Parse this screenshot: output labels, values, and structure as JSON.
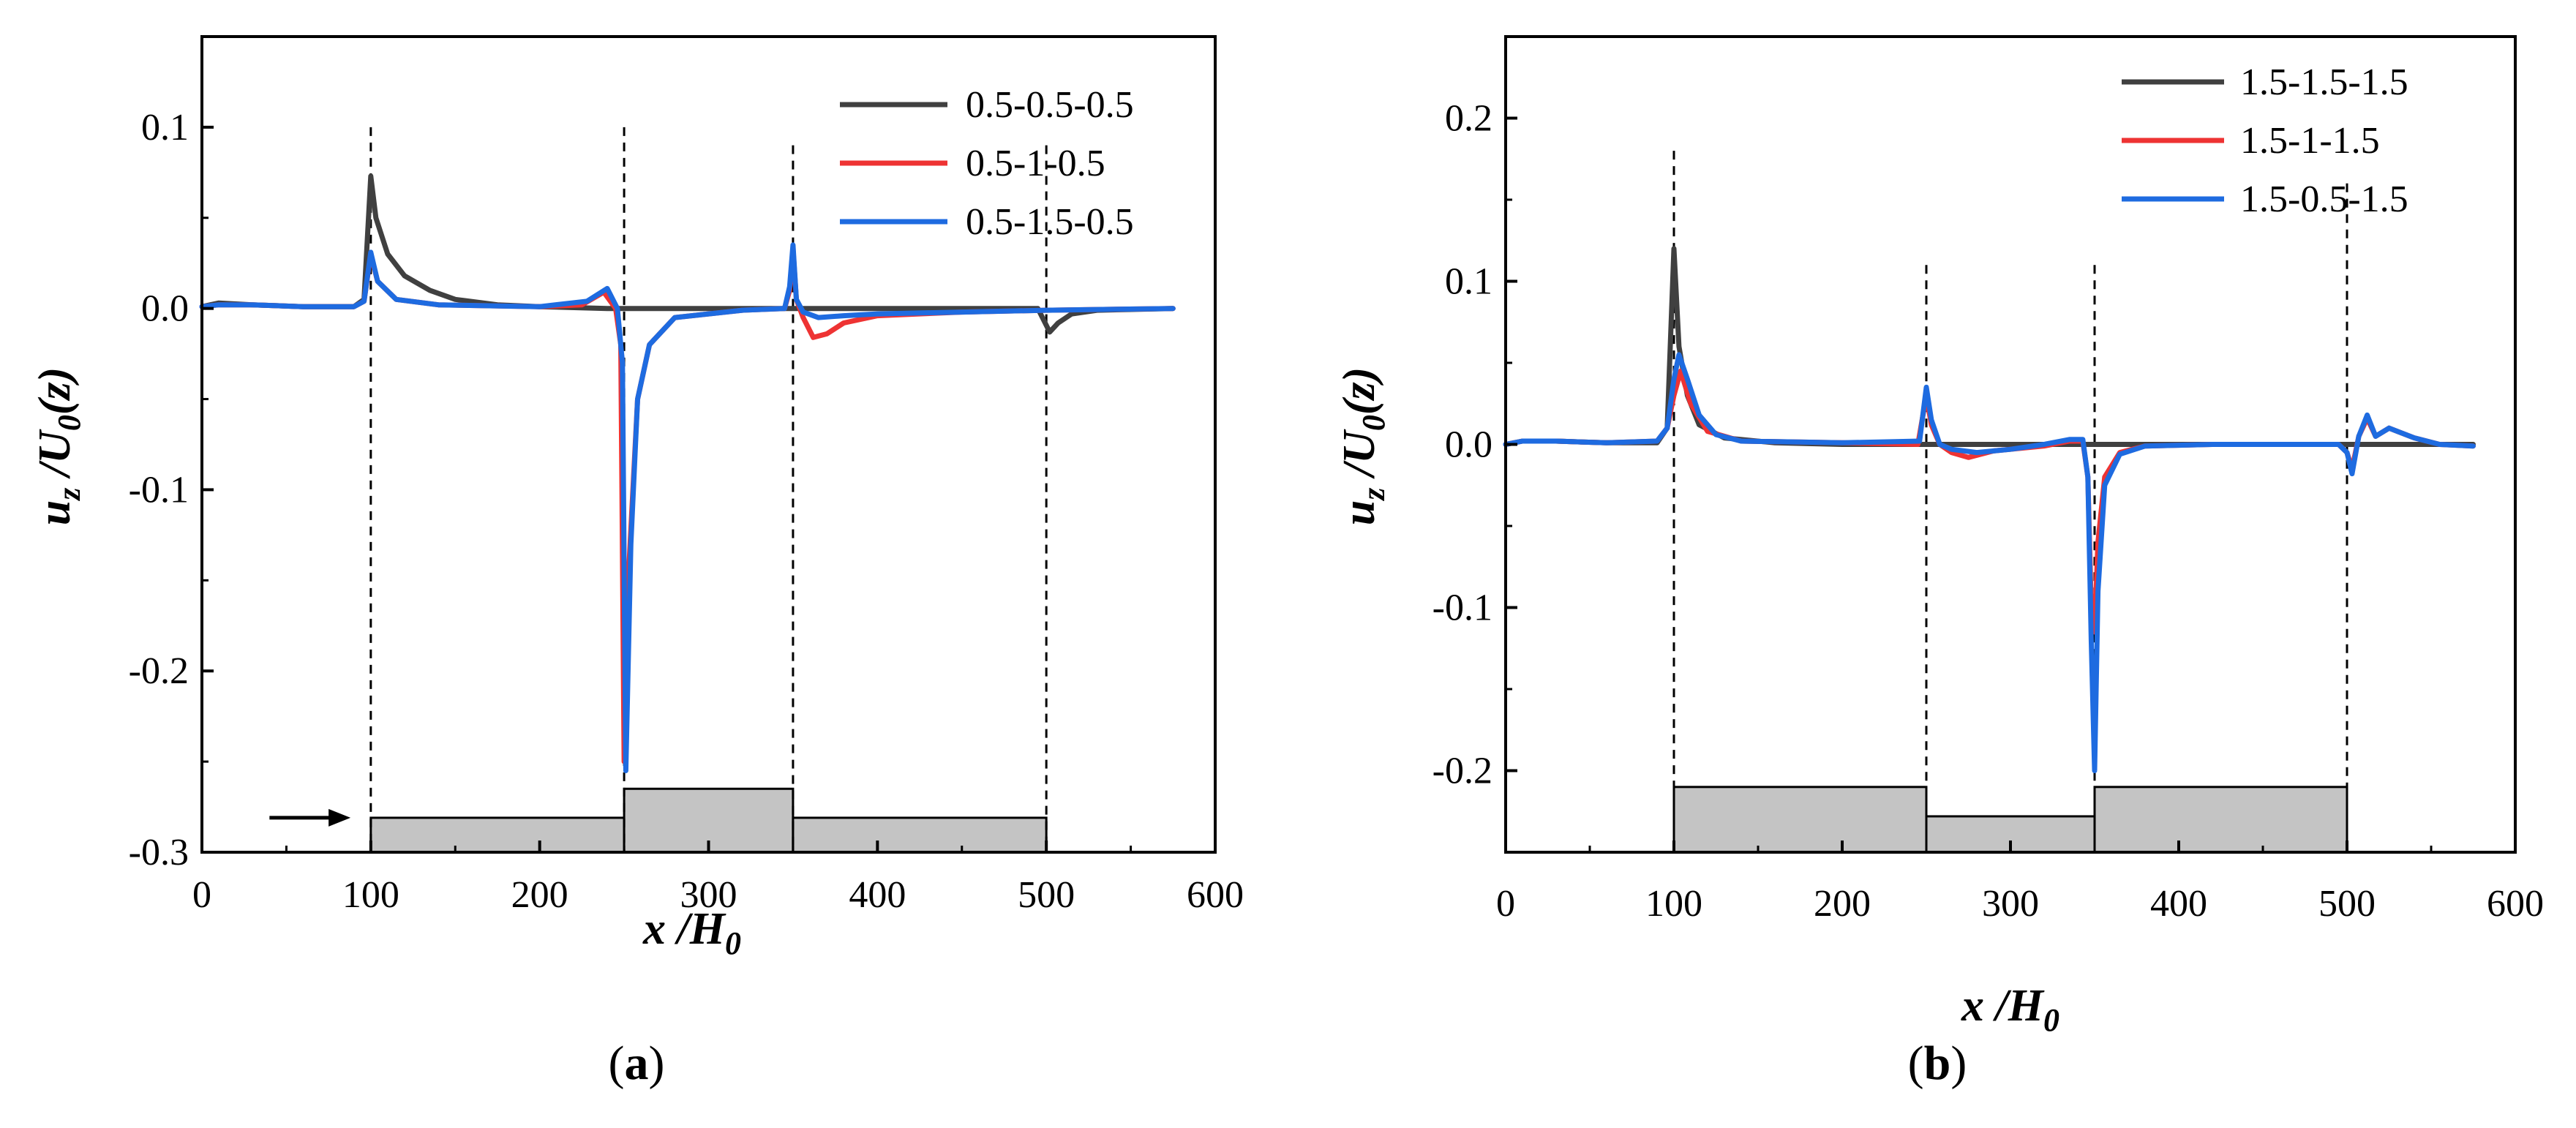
{
  "chart_data": [
    {
      "type": "line",
      "panel_label": "a",
      "xlabel": {
        "main": "x /H",
        "sub": "0"
      },
      "ylabel": {
        "main": "u",
        "sub1": "z",
        "mid": " /U",
        "sub2": "0",
        "tail": "(z)"
      },
      "xlim": [
        0,
        600
      ],
      "ylim": [
        -0.3,
        0.15
      ],
      "xticks": [
        0,
        100,
        200,
        300,
        400,
        500,
        600
      ],
      "xtick_labels": [
        "0",
        "100",
        "200",
        "300",
        "400",
        "500",
        "600"
      ],
      "yticks": [
        -0.3,
        -0.2,
        -0.1,
        0.0,
        0.1
      ],
      "ytick_labels": [
        "-0.3",
        "-0.2",
        "-0.1",
        "0.0",
        "0.1"
      ],
      "legend_position": "top-right",
      "vlines": [
        {
          "x": 100,
          "y_top": 0.1
        },
        {
          "x": 250,
          "y_top": 0.1
        },
        {
          "x": 350,
          "y_top": 0.09
        },
        {
          "x": 500,
          "y_top": 0.09
        }
      ],
      "blocks": [
        {
          "x0": 100,
          "x1": 250,
          "top": -0.281,
          "bottom": -0.3
        },
        {
          "x0": 250,
          "x1": 350,
          "top": -0.265,
          "bottom": -0.3
        },
        {
          "x0": 350,
          "x1": 500,
          "top": -0.281,
          "bottom": -0.3
        }
      ],
      "arrow": {
        "x0": 40,
        "x1": 88,
        "y": -0.281
      },
      "series": [
        {
          "name": "0.5-0.5-0.5",
          "color": "#404040",
          "points": [
            [
              0,
              0.001
            ],
            [
              10,
              0.003
            ],
            [
              30,
              0.002
            ],
            [
              60,
              0.001
            ],
            [
              90,
              0.001
            ],
            [
              96,
              0.005
            ],
            [
              100,
              0.073
            ],
            [
              103,
              0.05
            ],
            [
              110,
              0.03
            ],
            [
              120,
              0.018
            ],
            [
              135,
              0.01
            ],
            [
              150,
              0.005
            ],
            [
              175,
              0.002
            ],
            [
              200,
              0.001
            ],
            [
              240,
              0.0
            ],
            [
              350,
              0.0
            ],
            [
              400,
              0.0
            ],
            [
              495,
              0.0
            ],
            [
              502,
              -0.013
            ],
            [
              507,
              -0.008
            ],
            [
              515,
              -0.003
            ],
            [
              530,
              -0.001
            ],
            [
              575,
              0.0
            ]
          ]
        },
        {
          "name": "0.5-1-0.5",
          "color": "#ee3333",
          "points": [
            [
              0,
              0.001
            ],
            [
              10,
              0.002
            ],
            [
              30,
              0.002
            ],
            [
              60,
              0.001
            ],
            [
              90,
              0.001
            ],
            [
              96,
              0.004
            ],
            [
              100,
              0.03
            ],
            [
              104,
              0.015
            ],
            [
              115,
              0.005
            ],
            [
              140,
              0.002
            ],
            [
              200,
              0.001
            ],
            [
              225,
              0.002
            ],
            [
              238,
              0.009
            ],
            [
              245,
              0.0
            ],
            [
              248,
              -0.02
            ],
            [
              250,
              -0.25
            ],
            [
              253,
              -0.14
            ],
            [
              258,
              -0.05
            ],
            [
              265,
              -0.02
            ],
            [
              280,
              -0.005
            ],
            [
              320,
              -0.001
            ],
            [
              345,
              0.0
            ],
            [
              348,
              0.01
            ],
            [
              350,
              0.033
            ],
            [
              352,
              0.005
            ],
            [
              356,
              -0.005
            ],
            [
              362,
              -0.016
            ],
            [
              370,
              -0.014
            ],
            [
              380,
              -0.008
            ],
            [
              400,
              -0.004
            ],
            [
              450,
              -0.002
            ],
            [
              500,
              -0.001
            ],
            [
              575,
              0.0
            ]
          ]
        },
        {
          "name": "0.5-1.5-0.5",
          "color": "#1e6be0",
          "points": [
            [
              0,
              0.001
            ],
            [
              10,
              0.002
            ],
            [
              30,
              0.002
            ],
            [
              60,
              0.001
            ],
            [
              90,
              0.001
            ],
            [
              96,
              0.004
            ],
            [
              100,
              0.031
            ],
            [
              104,
              0.015
            ],
            [
              115,
              0.005
            ],
            [
              140,
              0.002
            ],
            [
              200,
              0.001
            ],
            [
              228,
              0.004
            ],
            [
              240,
              0.011
            ],
            [
              246,
              0.0
            ],
            [
              249,
              -0.03
            ],
            [
              251,
              -0.255
            ],
            [
              254,
              -0.13
            ],
            [
              258,
              -0.05
            ],
            [
              265,
              -0.02
            ],
            [
              280,
              -0.005
            ],
            [
              320,
              -0.001
            ],
            [
              345,
              0.0
            ],
            [
              348,
              0.012
            ],
            [
              350,
              0.035
            ],
            [
              352,
              0.005
            ],
            [
              356,
              -0.002
            ],
            [
              365,
              -0.005
            ],
            [
              380,
              -0.004
            ],
            [
              400,
              -0.003
            ],
            [
              450,
              -0.002
            ],
            [
              500,
              -0.001
            ],
            [
              575,
              0.0
            ]
          ]
        }
      ]
    },
    {
      "type": "line",
      "panel_label": "b",
      "xlabel": {
        "main": "x /H",
        "sub": "0"
      },
      "ylabel": {
        "main": "u",
        "sub1": "z",
        "mid": " /U",
        "sub2": "0",
        "tail": "(z)"
      },
      "xlim": [
        0,
        600
      ],
      "ylim": [
        -0.25,
        0.25
      ],
      "xticks": [
        0,
        100,
        200,
        300,
        400,
        500,
        600
      ],
      "xtick_labels": [
        "0",
        "100",
        "200",
        "300",
        "400",
        "500",
        "600"
      ],
      "yticks": [
        -0.2,
        -0.1,
        0.0,
        0.1,
        0.2
      ],
      "ytick_labels": [
        "-0.2",
        "-0.1",
        "0.0",
        "0.1",
        "0.2"
      ],
      "legend_position": "top-right",
      "vlines": [
        {
          "x": 100,
          "y_top": 0.18
        },
        {
          "x": 250,
          "y_top": 0.11
        },
        {
          "x": 350,
          "y_top": 0.11
        },
        {
          "x": 500,
          "y_top": 0.16
        }
      ],
      "blocks": [
        {
          "x0": 100,
          "x1": 250,
          "top": -0.21,
          "bottom": -0.25
        },
        {
          "x0": 250,
          "x1": 350,
          "top": -0.228,
          "bottom": -0.25
        },
        {
          "x0": 350,
          "x1": 500,
          "top": -0.21,
          "bottom": -0.25
        }
      ],
      "series": [
        {
          "name": "1.5-1.5-1.5",
          "color": "#404040",
          "points": [
            [
              0,
              0.0
            ],
            [
              10,
              0.002
            ],
            [
              30,
              0.002
            ],
            [
              60,
              0.001
            ],
            [
              90,
              0.001
            ],
            [
              96,
              0.01
            ],
            [
              100,
              0.12
            ],
            [
              103,
              0.06
            ],
            [
              108,
              0.03
            ],
            [
              115,
              0.012
            ],
            [
              130,
              0.004
            ],
            [
              160,
              0.001
            ],
            [
              200,
              0.0
            ],
            [
              575,
              0.0
            ]
          ]
        },
        {
          "name": "1.5-1-1.5",
          "color": "#ee3333",
          "points": [
            [
              0,
              0.0
            ],
            [
              10,
              0.002
            ],
            [
              30,
              0.002
            ],
            [
              60,
              0.001
            ],
            [
              90,
              0.002
            ],
            [
              96,
              0.01
            ],
            [
              100,
              0.03
            ],
            [
              104,
              0.045
            ],
            [
              110,
              0.025
            ],
            [
              120,
              0.008
            ],
            [
              140,
              0.002
            ],
            [
              200,
              0.001
            ],
            [
              245,
              0.0
            ],
            [
              250,
              0.03
            ],
            [
              253,
              0.012
            ],
            [
              258,
              0.0
            ],
            [
              265,
              -0.005
            ],
            [
              275,
              -0.008
            ],
            [
              290,
              -0.004
            ],
            [
              320,
              -0.001
            ],
            [
              335,
              0.002
            ],
            [
              343,
              0.002
            ],
            [
              346,
              -0.02
            ],
            [
              348,
              -0.1
            ],
            [
              350,
              -0.115
            ],
            [
              352,
              -0.06
            ],
            [
              356,
              -0.02
            ],
            [
              365,
              -0.005
            ],
            [
              380,
              -0.001
            ],
            [
              420,
              0.0
            ],
            [
              495,
              0.0
            ],
            [
              500,
              -0.005
            ],
            [
              503,
              -0.015
            ],
            [
              507,
              0.005
            ],
            [
              512,
              0.016
            ],
            [
              517,
              0.005
            ],
            [
              525,
              0.01
            ],
            [
              530,
              0.008
            ],
            [
              540,
              0.004
            ],
            [
              555,
              0.0
            ],
            [
              575,
              -0.001
            ]
          ]
        },
        {
          "name": "1.5-0.5-1.5",
          "color": "#1e6be0",
          "points": [
            [
              0,
              0.0
            ],
            [
              10,
              0.002
            ],
            [
              30,
              0.002
            ],
            [
              60,
              0.001
            ],
            [
              90,
              0.002
            ],
            [
              96,
              0.01
            ],
            [
              100,
              0.04
            ],
            [
              103,
              0.055
            ],
            [
              108,
              0.04
            ],
            [
              115,
              0.018
            ],
            [
              125,
              0.006
            ],
            [
              140,
              0.002
            ],
            [
              200,
              0.001
            ],
            [
              246,
              0.002
            ],
            [
              250,
              0.035
            ],
            [
              253,
              0.015
            ],
            [
              258,
              0.0
            ],
            [
              265,
              -0.003
            ],
            [
              280,
              -0.005
            ],
            [
              300,
              -0.003
            ],
            [
              320,
              0.0
            ],
            [
              335,
              0.003
            ],
            [
              343,
              0.003
            ],
            [
              346,
              -0.02
            ],
            [
              348,
              -0.12
            ],
            [
              350,
              -0.2
            ],
            [
              352,
              -0.09
            ],
            [
              356,
              -0.025
            ],
            [
              365,
              -0.006
            ],
            [
              380,
              -0.001
            ],
            [
              420,
              0.0
            ],
            [
              495,
              0.0
            ],
            [
              500,
              -0.005
            ],
            [
              503,
              -0.018
            ],
            [
              507,
              0.005
            ],
            [
              512,
              0.018
            ],
            [
              517,
              0.005
            ],
            [
              525,
              0.01
            ],
            [
              530,
              0.008
            ],
            [
              540,
              0.004
            ],
            [
              555,
              0.0
            ],
            [
              575,
              -0.001
            ]
          ]
        }
      ]
    }
  ]
}
